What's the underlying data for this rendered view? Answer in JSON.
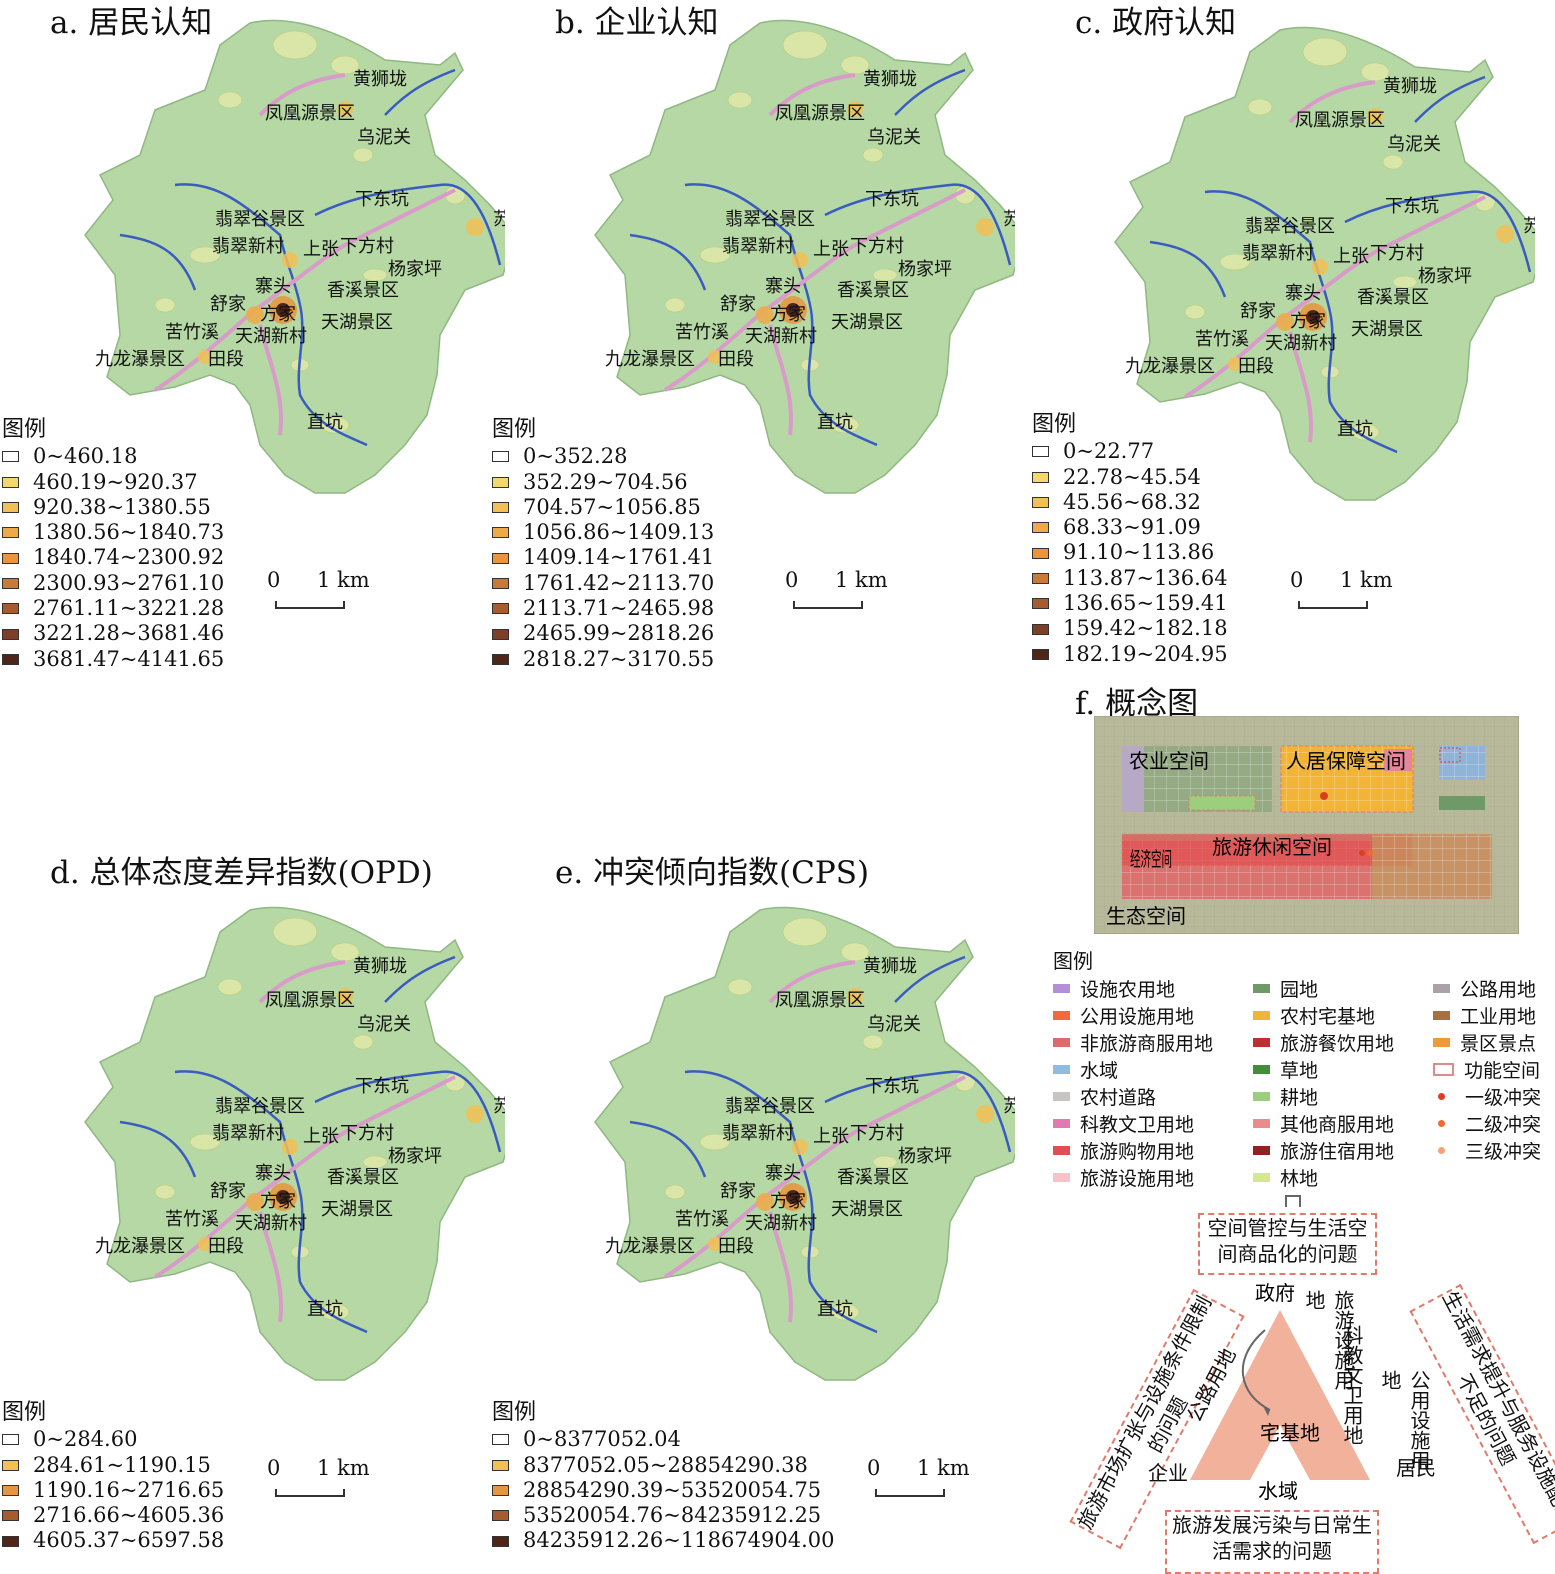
{
  "panels": [
    {
      "title": "a. 居民认知",
      "legend_title": "图例",
      "classes": [
        "0~460.18",
        "460.19~920.37",
        "920.38~1380.55",
        "1380.56~1840.73",
        "1840.74~2300.92",
        "2300.93~2761.10",
        "2761.11~3221.28",
        "3221.28~3681.46",
        "3681.47~4141.65"
      ],
      "class_colors": [
        "#ffffff",
        "#f4d86a",
        "#f2c055",
        "#efaa48",
        "#e7953e",
        "#c97a36",
        "#a65b30",
        "#7e3f27",
        "#4f2519"
      ]
    },
    {
      "title": "b. 企业认知",
      "legend_title": "图例",
      "classes": [
        "0~352.28",
        "352.29~704.56",
        "704.57~1056.85",
        "1056.86~1409.13",
        "1409.14~1761.41",
        "1761.42~2113.70",
        "2113.71~2465.98",
        "2465.99~2818.26",
        "2818.27~3170.55"
      ],
      "class_colors": [
        "#ffffff",
        "#f4d86a",
        "#f2c055",
        "#efaa48",
        "#e7953e",
        "#c97a36",
        "#a65b30",
        "#7e3f27",
        "#4f2519"
      ]
    },
    {
      "title": "c. 政府认知",
      "legend_title": "图例",
      "classes": [
        "0~22.77",
        "22.78~45.54",
        "45.56~68.32",
        "68.33~91.09",
        "91.10~113.86",
        "113.87~136.64",
        "136.65~159.41",
        "159.42~182.18",
        "182.19~204.95"
      ],
      "class_colors": [
        "#ffffff",
        "#f4d86a",
        "#f2c055",
        "#efaa48",
        "#e7953e",
        "#c97a36",
        "#a65b30",
        "#7e3f27",
        "#4f2519"
      ]
    },
    {
      "title": "d. 总体态度差异指数(OPD)",
      "legend_title": "图例",
      "classes": [
        "0~284.60",
        "284.61~1190.15",
        "1190.16~2716.65",
        "2716.66~4605.36",
        "4605.37~6597.58"
      ],
      "class_colors": [
        "#ffffff",
        "#f2c055",
        "#e7953e",
        "#a65b30",
        "#4f2519"
      ]
    },
    {
      "title": "e. 冲突倾向指数(CPS)",
      "legend_title": "图例",
      "classes": [
        "0~8377052.04",
        "8377052.05~28854290.38",
        "28854290.39~53520054.75",
        "53520054.76~84235912.25",
        "84235912.26~118674904.00"
      ],
      "class_colors": [
        "#ffffff",
        "#f2c055",
        "#e7953e",
        "#a65b30",
        "#4f2519"
      ]
    }
  ],
  "place_names": {
    "huangshiduang": "黄狮垅",
    "fenghuangyuan": "凤凰源景区",
    "wuniguan": "乌泥关",
    "xiadongkeng": "下东坑",
    "sukeng": "苏坑",
    "feicuigu": "翡翠谷景区",
    "feicuixincun": "翡翠新村",
    "shangzhang": "上张",
    "xiafangcun": "下方村",
    "yangjiaping": "杨家坪",
    "zhaitou": "寨头",
    "xiangxi": "香溪景区",
    "shujia": "舒家",
    "fangjia": "方家",
    "kuzhuxi": "苦竹溪",
    "tianhuxincun": "天湖新村",
    "tianhu": "天湖景区",
    "jiulongpu": "九龙瀑景区",
    "tianduan": "田段",
    "zhikeng": "直坑"
  },
  "scale": {
    "zero": "0",
    "one": "1 km"
  },
  "concept": {
    "title": "f. 概念图",
    "zones": {
      "agri": "农业空间",
      "living": "人居保障空间",
      "tourism": "旅游休闲空间",
      "econ": "经济空间",
      "eco": "生态空间"
    },
    "legend_title": "图例",
    "legend_items": [
      {
        "label": "设施农用地",
        "color": "#b58fd6",
        "kind": "fill"
      },
      {
        "label": "园地",
        "color": "#6f9a68",
        "kind": "fill"
      },
      {
        "label": "公路用地",
        "color": "#a9a2a8",
        "kind": "fill"
      },
      {
        "label": "公用设施用地",
        "color": "#f06a3a",
        "kind": "fill"
      },
      {
        "label": "农村宅基地",
        "color": "#f2b437",
        "kind": "fill"
      },
      {
        "label": "工业用地",
        "color": "#a6703f",
        "kind": "fill"
      },
      {
        "label": "非旅游商服用地",
        "color": "#e06a6a",
        "kind": "fill"
      },
      {
        "label": "旅游餐饮用地",
        "color": "#c02f2f",
        "kind": "fill"
      },
      {
        "label": "景区景点",
        "color": "#ef9a3a",
        "kind": "fill"
      },
      {
        "label": "水域",
        "color": "#8fbde0",
        "kind": "fill"
      },
      {
        "label": "草地",
        "color": "#3f8f3a",
        "kind": "fill"
      },
      {
        "label": "功能空间",
        "color": "#e08a8a",
        "kind": "outline"
      },
      {
        "label": "农村道路",
        "color": "#c9c4c4",
        "kind": "fill"
      },
      {
        "label": "耕地",
        "color": "#9ccf7d",
        "kind": "fill"
      },
      {
        "label": "一级冲突",
        "color": "#d8401e",
        "kind": "star"
      },
      {
        "label": "科教文卫用地",
        "color": "#e07bb1",
        "kind": "fill"
      },
      {
        "label": "其他商服用地",
        "color": "#ea8c8c",
        "kind": "fill"
      },
      {
        "label": "二级冲突",
        "color": "#f26b2c",
        "kind": "dot"
      },
      {
        "label": "旅游购物用地",
        "color": "#e34f4f",
        "kind": "fill"
      },
      {
        "label": "旅游住宿用地",
        "color": "#8f2222",
        "kind": "fill"
      },
      {
        "label": "三级冲突",
        "color": "#f5a27a",
        "kind": "dot"
      },
      {
        "label": "旅游设施用地",
        "color": "#f7c2c8",
        "kind": "fill"
      },
      {
        "label": "林地",
        "color": "#d5e792",
        "kind": "fill"
      }
    ],
    "issues": {
      "top": "空间管控与生活空间商品化的问题",
      "left": "旅游市场扩张与设施条件限制的问题",
      "right": "生活需求提升与服务设施配置不足的问题",
      "bottom": "旅游发展污染与日常生活需求的问题"
    },
    "actors": {
      "gov": "政府",
      "ent": "企业",
      "res": "居民"
    },
    "triangle_labels": {
      "road": "公路用地",
      "home": "宅基地",
      "water": "水域",
      "tour": "旅游设施用地",
      "edu": "科教文卫用地",
      "pub": "公用设施用地"
    }
  }
}
